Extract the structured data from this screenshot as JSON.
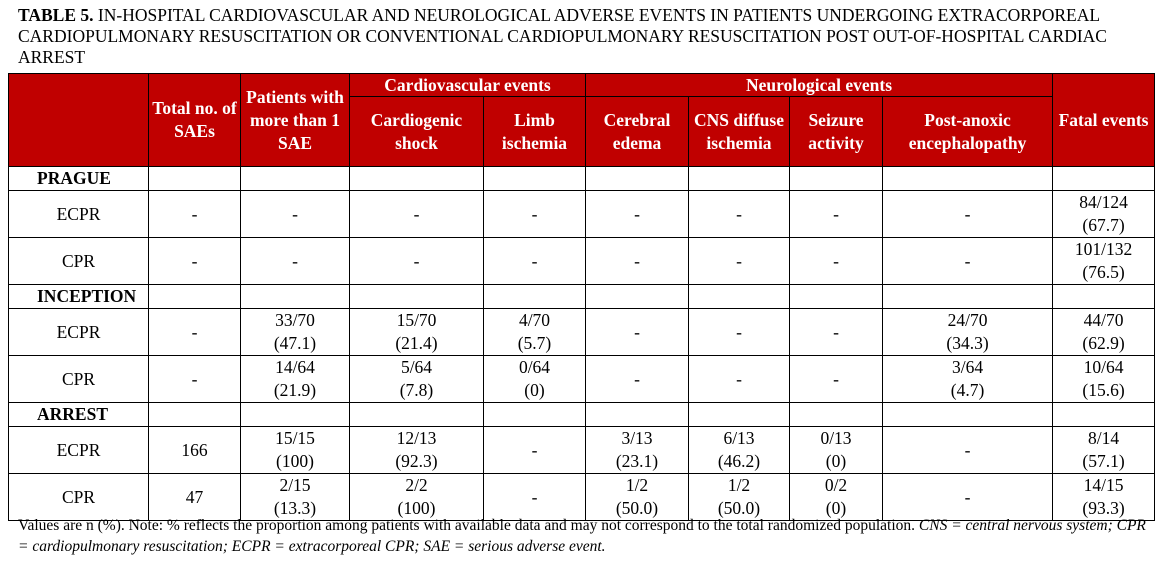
{
  "title": {
    "bold": "TABLE 5.",
    "text": " IN-HOSPITAL CARDIOVASCULAR AND NEUROLOGICAL ADVERSE EVENTS IN PATIENTS UNDERGOING EXTRACORPOREAL CARDIOPULMONARY RESUSCITATION OR CONVENTIONAL CARDIOPULMONARY RESUSCITATION POST OUT-OF-HOSPITAL CARDIAC ARREST"
  },
  "headers": {
    "total_saes": "Total no. of SAEs",
    "patients_more_than_1": "Patients with more than 1 SAE",
    "cardiovascular_group": "Cardiovascular events",
    "cardiogenic_shock": "Cardiogenic shock",
    "limb_ischemia": "Limb ischemia",
    "neurological_group": "Neurological events",
    "cerebral_edema": "Cerebral edema",
    "cns_diffuse_ischemia": "CNS diffuse ischemia",
    "seizure_activity": "Seizure activity",
    "post_anoxic": "Post-anoxic encephalopathy",
    "fatal_events": "Fatal events"
  },
  "groups": [
    {
      "name": "PRAGUE",
      "rows": [
        {
          "label": "ECPR",
          "cells": [
            [
              "-",
              ""
            ],
            [
              "-",
              ""
            ],
            [
              "-",
              ""
            ],
            [
              "-",
              ""
            ],
            [
              "-",
              ""
            ],
            [
              "-",
              ""
            ],
            [
              "-",
              ""
            ],
            [
              "-",
              ""
            ],
            [
              "84/124",
              "(67.7)"
            ]
          ]
        },
        {
          "label": "CPR",
          "cells": [
            [
              "-",
              ""
            ],
            [
              "-",
              ""
            ],
            [
              "-",
              ""
            ],
            [
              "-",
              ""
            ],
            [
              "-",
              ""
            ],
            [
              "-",
              ""
            ],
            [
              "-",
              ""
            ],
            [
              "-",
              ""
            ],
            [
              "101/132",
              "(76.5)"
            ]
          ]
        }
      ]
    },
    {
      "name": "INCEPTION",
      "rows": [
        {
          "label": "ECPR",
          "cells": [
            [
              "-",
              ""
            ],
            [
              "33/70",
              "(47.1)"
            ],
            [
              "15/70",
              "(21.4)"
            ],
            [
              "4/70",
              "(5.7)"
            ],
            [
              "-",
              ""
            ],
            [
              "-",
              ""
            ],
            [
              "-",
              ""
            ],
            [
              "24/70",
              "(34.3)"
            ],
            [
              "44/70",
              "(62.9)"
            ]
          ]
        },
        {
          "label": "CPR",
          "cells": [
            [
              "-",
              ""
            ],
            [
              "14/64",
              "(21.9)"
            ],
            [
              "5/64",
              "(7.8)"
            ],
            [
              "0/64",
              "(0)"
            ],
            [
              "-",
              ""
            ],
            [
              "-",
              ""
            ],
            [
              "-",
              ""
            ],
            [
              "3/64",
              "(4.7)"
            ],
            [
              "10/64",
              "(15.6)"
            ]
          ]
        }
      ]
    },
    {
      "name": "ARREST",
      "rows": [
        {
          "label": "ECPR",
          "cells": [
            [
              "166",
              ""
            ],
            [
              "15/15",
              "(100)"
            ],
            [
              "12/13",
              "(92.3)"
            ],
            [
              "-",
              ""
            ],
            [
              "3/13",
              "(23.1)"
            ],
            [
              "6/13",
              "(46.2)"
            ],
            [
              "0/13",
              "(0)"
            ],
            [
              "-",
              ""
            ],
            [
              "8/14",
              "(57.1)"
            ]
          ]
        },
        {
          "label": "CPR",
          "cells": [
            [
              "47",
              ""
            ],
            [
              "2/15",
              "(13.3)"
            ],
            [
              "2/2",
              "(100)"
            ],
            [
              "-",
              ""
            ],
            [
              "1/2",
              "(50.0)"
            ],
            [
              "1/2",
              "(50.0)"
            ],
            [
              "0/2",
              "(0)"
            ],
            [
              "-",
              ""
            ],
            [
              "14/15",
              "(93.3)"
            ]
          ]
        }
      ]
    }
  ],
  "note": {
    "plain": "Values are n (%). Note: % reflects the proportion among patients with available data and may not correspond to the total randomized population. ",
    "italic": "CNS = central nervous system; CPR = cardiopulmonary resuscitation; ECPR = extracorporeal CPR; SAE = serious adverse event."
  },
  "colors": {
    "header_bg": "#c00000",
    "header_text": "#ffffff"
  }
}
